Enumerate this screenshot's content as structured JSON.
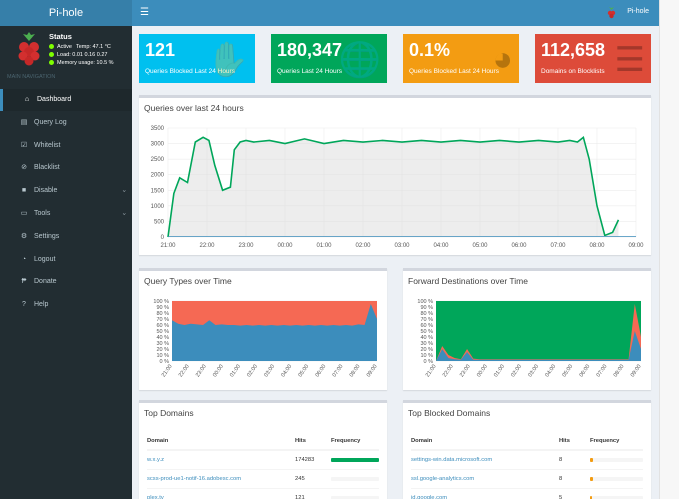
{
  "brand": {
    "title": "Pi-hole",
    "user_label": "Pi-hole"
  },
  "colors": {
    "header": "#3c8dbc",
    "header_logo": "#367fa9",
    "sidebar": "#222d32",
    "tile_aqua": "#00c0ef",
    "tile_green": "#00a65a",
    "tile_yellow": "#f39c12",
    "tile_red": "#dd4b39",
    "line_green": "#00a65a",
    "area_red": "#f56954",
    "area_blue": "#3c8dbc"
  },
  "status": {
    "title": "Status",
    "active_label": "Active",
    "temp_label": "Temp: 47.1 °C",
    "load_label": "Load:  0.01  0.16  0.27",
    "memory_label": "Memory usage:  10.5 %"
  },
  "sidebar": {
    "section_header": "MAIN NAVIGATION",
    "items": [
      {
        "label": "Dashboard",
        "icon": "home-icon",
        "glyph": "⌂"
      },
      {
        "label": "Query Log",
        "icon": "file-icon",
        "glyph": "▤"
      },
      {
        "label": "Whitelist",
        "icon": "check-icon",
        "glyph": "☑"
      },
      {
        "label": "Blacklist",
        "icon": "ban-icon",
        "glyph": "⊘"
      },
      {
        "label": "Disable",
        "icon": "stop-icon",
        "glyph": "■"
      },
      {
        "label": "Tools",
        "icon": "folder-icon",
        "glyph": "▭"
      },
      {
        "label": "Settings",
        "icon": "gears-icon",
        "glyph": "⚙"
      },
      {
        "label": "Logout",
        "icon": "user-icon",
        "glyph": "◔"
      },
      {
        "label": "Donate",
        "icon": "paypal-icon",
        "glyph": "₱"
      },
      {
        "label": "Help",
        "icon": "question-icon",
        "glyph": "?"
      }
    ]
  },
  "tiles": [
    {
      "value": "121",
      "label": "Queries Blocked Last 24 Hours",
      "icon": "hand-icon",
      "glyph": "✋"
    },
    {
      "value": "180,347",
      "label": "Queries Last 24 Hours",
      "icon": "globe-icon",
      "glyph": "🌐"
    },
    {
      "value": "0.1%",
      "label": "Queries Blocked Last 24 Hours",
      "icon": "pie-chart-icon",
      "glyph": "◕"
    },
    {
      "value": "112,658",
      "label": "Domains on Blocklists",
      "icon": "list-icon",
      "glyph": "☰"
    }
  ],
  "panels": {
    "queries_title": "Queries over last 24 hours",
    "query_types_title": "Query Types over Time",
    "forward_title": "Forward Destinations over Time",
    "top_domains_title": "Top Domains",
    "top_blocked_title": "Top Blocked Domains"
  },
  "time_labels": [
    "21:00",
    "22:00",
    "23:00",
    "00:00",
    "01:00",
    "02:00",
    "03:00",
    "04:00",
    "05:00",
    "06:00",
    "07:00",
    "08:00",
    "09:00"
  ],
  "chart_data": [
    {
      "type": "line",
      "title": "Queries over last 24 hours",
      "ylim": [
        0,
        3500
      ],
      "yticks": [
        0,
        500,
        1000,
        1500,
        2000,
        2500,
        3000,
        3500
      ],
      "x_hours": [
        0,
        0.15,
        0.3,
        0.5,
        0.7,
        0.9,
        1.05,
        1.2,
        1.4,
        1.6,
        1.7,
        1.85,
        2.0,
        2.2,
        2.6,
        3,
        3.5,
        4,
        4.5,
        5,
        5.5,
        6,
        6.5,
        7,
        7.5,
        8,
        8.5,
        9,
        9.5,
        10,
        10.3,
        10.5,
        10.65,
        10.8,
        11.0,
        11.2,
        11.4,
        11.55
      ],
      "series": [
        {
          "name": "",
          "values": [
            0,
            1400,
            1900,
            1750,
            3050,
            3200,
            3100,
            2300,
            1500,
            1600,
            2800,
            3050,
            3100,
            3050,
            3100,
            3000,
            3150,
            3000,
            3100,
            3050,
            3100,
            3050,
            3100,
            3050,
            3100,
            3050,
            3100,
            3050,
            3100,
            3050,
            3100,
            3050,
            3200,
            2500,
            1000,
            50,
            150,
            550
          ]
        }
      ],
      "grid": true
    },
    {
      "type": "area",
      "title": "Query Types over Time",
      "ylim": [
        0,
        100
      ],
      "yticks": [
        "0 %",
        "10 %",
        "20 %",
        "30 %",
        "40 %",
        "50 %",
        "60 %",
        "70 %",
        "80 %",
        "90 %",
        "100 %"
      ],
      "series": [
        {
          "name": "",
          "values": [
            68,
            62,
            60,
            62,
            61,
            60,
            68,
            60,
            61,
            60,
            60,
            59,
            60,
            59,
            60,
            59,
            60,
            59,
            60,
            59,
            60,
            59,
            60,
            59,
            60,
            59,
            60,
            59,
            60,
            59,
            61,
            60,
            95,
            70
          ]
        },
        {
          "name": "",
          "values": [
            100,
            100,
            100,
            100,
            100,
            100,
            100,
            100,
            100,
            100,
            100,
            100,
            100,
            100,
            100,
            100,
            100,
            100,
            100,
            100,
            100,
            100,
            100,
            100,
            100,
            100,
            100,
            100,
            100,
            100,
            100,
            100,
            100,
            100
          ]
        }
      ]
    },
    {
      "type": "area",
      "title": "Forward Destinations over Time",
      "ylim": [
        0,
        100
      ],
      "yticks": [
        "0 %",
        "10 %",
        "20 %",
        "30 %",
        "40 %",
        "50 %",
        "60 %",
        "70 %",
        "80 %",
        "90 %",
        "100 %"
      ],
      "series": [
        {
          "name": "",
          "values": [
            0,
            20,
            5,
            3,
            2,
            15,
            2,
            2,
            2,
            2,
            2,
            2,
            2,
            2,
            2,
            2,
            2,
            2,
            2,
            2,
            2,
            2,
            2,
            2,
            2,
            2,
            2,
            2,
            2,
            2,
            2,
            2,
            50,
            20
          ]
        },
        {
          "name": "",
          "values": [
            0,
            25,
            10,
            5,
            3,
            20,
            4,
            3,
            3,
            3,
            3,
            3,
            3,
            3,
            3,
            3,
            3,
            3,
            3,
            3,
            3,
            3,
            3,
            3,
            3,
            3,
            3,
            3,
            3,
            3,
            3,
            3,
            95,
            40
          ]
        },
        {
          "name": "",
          "values": [
            100,
            100,
            100,
            100,
            100,
            100,
            100,
            100,
            100,
            100,
            100,
            100,
            100,
            100,
            100,
            100,
            100,
            100,
            100,
            100,
            100,
            100,
            100,
            100,
            100,
            100,
            100,
            100,
            100,
            100,
            100,
            100,
            100,
            100
          ]
        }
      ]
    }
  ],
  "top_domains": {
    "columns": [
      "Domain",
      "Hits",
      "Frequency"
    ],
    "rows": [
      {
        "domain": "w.x.y.z",
        "hits": "174283",
        "freq": 1.0,
        "color": "#00a65a"
      },
      {
        "domain": "scss-prod-ue1-notif-16.adobesc.com",
        "hits": "245",
        "freq": 0.0,
        "color": "#00a65a"
      },
      {
        "domain": "plex.tv",
        "hits": "121",
        "freq": 0.0,
        "color": "#00a65a"
      }
    ]
  },
  "top_blocked": {
    "columns": [
      "Domain",
      "Hits",
      "Frequency"
    ],
    "rows": [
      {
        "domain": "settings-win.data.microsoft.com",
        "hits": "8",
        "freq": 0.066,
        "color": "#f39c12"
      },
      {
        "domain": "ssl.google-analytics.com",
        "hits": "8",
        "freq": 0.066,
        "color": "#f39c12"
      },
      {
        "domain": "id.google.com",
        "hits": "5",
        "freq": 0.041,
        "color": "#f39c12"
      }
    ]
  }
}
